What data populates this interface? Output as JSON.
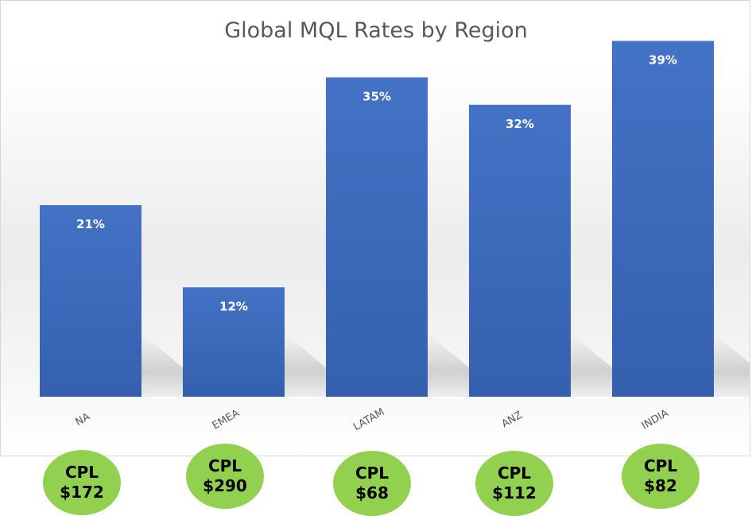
{
  "chart_data": {
    "type": "bar",
    "title": "Global MQL Rates by Region",
    "categories": [
      "NA",
      "EMEA",
      "LATAM",
      "ANZ",
      "INDIA"
    ],
    "values": [
      21,
      12,
      35,
      32,
      39
    ],
    "data_labels": [
      "21%",
      "12%",
      "35%",
      "32%",
      "39%"
    ],
    "value_unit": "%",
    "ylim": [
      0,
      40
    ],
    "grid": false,
    "legend": "none",
    "bar_color": "#4472c4"
  },
  "cpl": {
    "label": "CPL",
    "values": [
      "$172",
      "$290",
      "$68",
      "$112",
      "$82"
    ],
    "color": "#92d050"
  }
}
